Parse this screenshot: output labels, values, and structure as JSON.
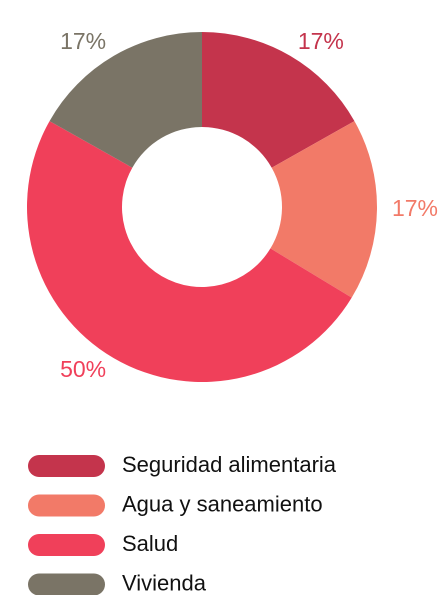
{
  "chart_data": {
    "type": "donut",
    "categories": [
      "Seguridad alimentaria",
      "Agua y saneamiento",
      "Salud",
      "Vivienda"
    ],
    "values": [
      17,
      17,
      50,
      17
    ],
    "value_labels": [
      "17%",
      "17%",
      "50%",
      "17%"
    ],
    "colors": [
      "#c4344c",
      "#f27a68",
      "#f0405a",
      "#7a7466"
    ],
    "legend": "bottom"
  }
}
